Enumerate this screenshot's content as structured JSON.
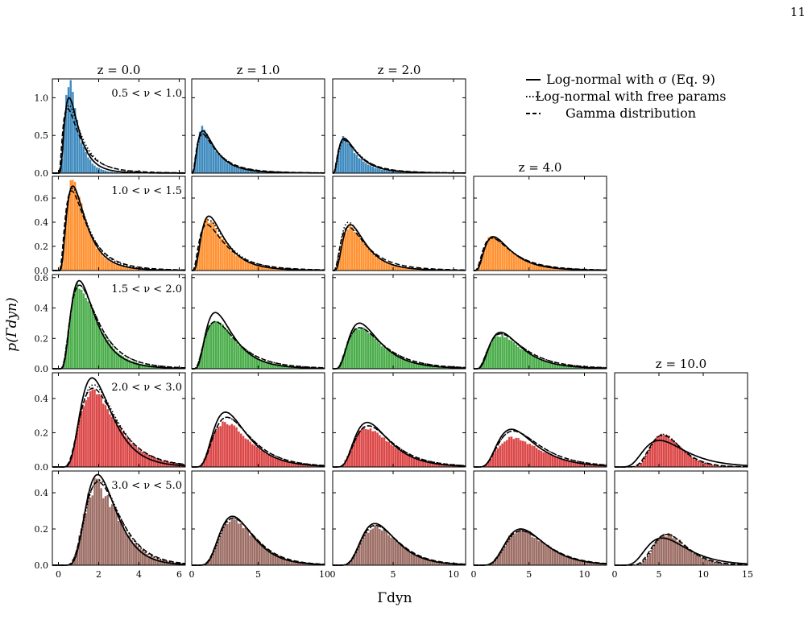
{
  "page_number": "11",
  "figure": {
    "ylabel": "p(Γdyn)",
    "xlabel": "Γdyn",
    "legend": {
      "placement": "top-right",
      "entries": [
        {
          "style": "solid",
          "label": "Log-normal with σ (Eq. 9)"
        },
        {
          "style": "dotted",
          "label": "Log-normal with free params"
        },
        {
          "style": "dashed",
          "label": "Gamma distribution"
        }
      ]
    },
    "colors": {
      "row0": "#1f77b4",
      "row1": "#ff7f0e",
      "row2": "#2ca02c",
      "row3": "#d62728",
      "row4": "#8c564b"
    }
  },
  "chart_data": {
    "type": "histogram-grid",
    "columns": [
      {
        "title": "z = 0.0",
        "xlim": [
          -0.3,
          6.3
        ],
        "xticks": [
          "0",
          "2",
          "4",
          "6"
        ]
      },
      {
        "title": "z = 1.0",
        "xlim": [
          0,
          10
        ],
        "xticks": [
          "0",
          "5",
          "10"
        ]
      },
      {
        "title": "z = 2.0",
        "xlim": [
          0,
          11
        ],
        "xticks": [
          "0",
          "5",
          "10"
        ]
      },
      {
        "title": "z = 4.0",
        "xlim": [
          0,
          12
        ],
        "xticks": [
          "0",
          "5",
          "10"
        ]
      },
      {
        "title": "z = 10.0",
        "xlim": [
          0,
          15
        ],
        "xticks": [
          "0",
          "5",
          "10",
          "15"
        ]
      }
    ],
    "rows": [
      {
        "label": "0.5 < ν < 1.0",
        "color": "#1f77b4",
        "ylim": [
          0,
          1.25
        ],
        "yticks": [
          "0.0",
          "0.5",
          "1.0"
        ],
        "ytick_values": [
          0,
          0.5,
          1.0
        ],
        "panels": [
          {
            "col": 0,
            "solid": {
              "median": 0.78,
              "sigma": 0.62,
              "peak": 1.0
            },
            "dotted": {
              "median": 0.88,
              "sigma": 0.72,
              "peak": 0.9
            },
            "dashed": {
              "median": 0.85,
              "sigma": 0.8,
              "peak": 0.86
            },
            "hist": {
              "median": 0.72,
              "sigma": 0.55,
              "peak": 1.2,
              "jitter": 0.1
            }
          },
          {
            "col": 1,
            "solid": {
              "median": 1.4,
              "sigma": 0.72,
              "peak": 0.56
            },
            "dotted": {
              "median": 1.5,
              "sigma": 0.75,
              "peak": 0.52
            },
            "dashed": {
              "median": 1.5,
              "sigma": 0.8,
              "peak": 0.52
            },
            "hist": {
              "median": 1.35,
              "sigma": 0.7,
              "peak": 0.6,
              "jitter": 0.08
            }
          },
          {
            "col": 2,
            "solid": {
              "median": 1.6,
              "sigma": 0.72,
              "peak": 0.46
            },
            "dotted": {
              "median": 1.7,
              "sigma": 0.72,
              "peak": 0.44
            },
            "dashed": {
              "median": 1.7,
              "sigma": 0.78,
              "peak": 0.44
            },
            "hist": {
              "median": 1.5,
              "sigma": 0.7,
              "peak": 0.46,
              "jitter": 0.08
            }
          }
        ]
      },
      {
        "label": "1.0 < ν < 1.5",
        "color": "#ff7f0e",
        "ylim": [
          0,
          0.78
        ],
        "yticks": [
          "0.0",
          "0.2",
          "0.4",
          "0.6"
        ],
        "ytick_values": [
          0,
          0.2,
          0.4,
          0.6
        ],
        "panels": [
          {
            "col": 0,
            "solid": {
              "median": 1.05,
              "sigma": 0.62,
              "peak": 0.7
            },
            "dotted": {
              "median": 1.1,
              "sigma": 0.65,
              "peak": 0.68
            },
            "dashed": {
              "median": 1.1,
              "sigma": 0.72,
              "peak": 0.66
            },
            "hist": {
              "median": 1.02,
              "sigma": 0.6,
              "peak": 0.74,
              "jitter": 0.05
            }
          },
          {
            "col": 1,
            "solid": {
              "median": 1.9,
              "sigma": 0.62,
              "peak": 0.45
            },
            "dotted": {
              "median": 2.0,
              "sigma": 0.68,
              "peak": 0.42
            },
            "dashed": {
              "median": 2.0,
              "sigma": 0.75,
              "peak": 0.38
            },
            "hist": {
              "median": 1.9,
              "sigma": 0.66,
              "peak": 0.42,
              "jitter": 0.06
            }
          },
          {
            "col": 2,
            "solid": {
              "median": 2.1,
              "sigma": 0.6,
              "peak": 0.38
            },
            "dotted": {
              "median": 2.0,
              "sigma": 0.65,
              "peak": 0.4
            },
            "dashed": {
              "median": 2.2,
              "sigma": 0.72,
              "peak": 0.36
            },
            "hist": {
              "median": 2.1,
              "sigma": 0.64,
              "peak": 0.36,
              "jitter": 0.06
            }
          },
          {
            "col": 3,
            "solid": {
              "median": 2.6,
              "sigma": 0.62,
              "peak": 0.28
            },
            "dotted": {
              "median": 2.7,
              "sigma": 0.66,
              "peak": 0.27
            },
            "dashed": {
              "median": 2.7,
              "sigma": 0.7,
              "peak": 0.27
            },
            "hist": {
              "median": 2.6,
              "sigma": 0.64,
              "peak": 0.28,
              "jitter": 0.06
            }
          }
        ]
      },
      {
        "label": "1.5 < ν < 2.0",
        "color": "#2ca02c",
        "ylim": [
          0,
          0.62
        ],
        "yticks": [
          "0.0",
          "0.2",
          "0.4",
          "0.6"
        ],
        "ytick_values": [
          0,
          0.2,
          0.4,
          0.6
        ],
        "panels": [
          {
            "col": 0,
            "solid": {
              "median": 1.4,
              "sigma": 0.55,
              "peak": 0.58
            },
            "dotted": {
              "median": 1.5,
              "sigma": 0.6,
              "peak": 0.55
            },
            "dashed": {
              "median": 1.5,
              "sigma": 0.6,
              "peak": 0.55
            },
            "hist": {
              "median": 1.45,
              "sigma": 0.58,
              "peak": 0.55,
              "jitter": 0.05
            }
          },
          {
            "col": 1,
            "solid": {
              "median": 2.4,
              "sigma": 0.55,
              "peak": 0.37
            },
            "dotted": {
              "median": 2.6,
              "sigma": 0.62,
              "peak": 0.31
            },
            "dashed": {
              "median": 2.6,
              "sigma": 0.62,
              "peak": 0.31
            },
            "hist": {
              "median": 2.5,
              "sigma": 0.6,
              "peak": 0.32,
              "jitter": 0.05
            }
          },
          {
            "col": 2,
            "solid": {
              "median": 3.0,
              "sigma": 0.55,
              "peak": 0.3
            },
            "dotted": {
              "median": 3.2,
              "sigma": 0.6,
              "peak": 0.27
            },
            "dashed": {
              "median": 3.2,
              "sigma": 0.6,
              "peak": 0.27
            },
            "hist": {
              "median": 3.1,
              "sigma": 0.6,
              "peak": 0.27,
              "jitter": 0.05
            }
          },
          {
            "col": 3,
            "solid": {
              "median": 3.3,
              "sigma": 0.55,
              "peak": 0.24
            },
            "dotted": {
              "median": 3.5,
              "sigma": 0.6,
              "peak": 0.23
            },
            "dashed": {
              "median": 3.5,
              "sigma": 0.6,
              "peak": 0.23
            },
            "hist": {
              "median": 3.4,
              "sigma": 0.6,
              "peak": 0.22,
              "jitter": 0.05
            }
          }
        ]
      },
      {
        "label": "2.0 < ν < 3.0",
        "color": "#d62728",
        "ylim": [
          0,
          0.55
        ],
        "yticks": [
          "0.0",
          "0.2",
          "0.4"
        ],
        "ytick_values": [
          0,
          0.2,
          0.4
        ],
        "panels": [
          {
            "col": 0,
            "solid": {
              "median": 2.05,
              "sigma": 0.45,
              "peak": 0.52
            },
            "dotted": {
              "median": 2.2,
              "sigma": 0.48,
              "peak": 0.48
            },
            "dashed": {
              "median": 2.2,
              "sigma": 0.5,
              "peak": 0.46
            },
            "hist": {
              "median": 2.2,
              "sigma": 0.5,
              "peak": 0.44,
              "jitter": 0.04
            }
          },
          {
            "col": 1,
            "solid": {
              "median": 3.2,
              "sigma": 0.48,
              "peak": 0.32
            },
            "dotted": {
              "median": 3.4,
              "sigma": 0.5,
              "peak": 0.29
            },
            "dashed": {
              "median": 3.4,
              "sigma": 0.5,
              "peak": 0.29
            },
            "hist": {
              "median": 3.3,
              "sigma": 0.52,
              "peak": 0.26,
              "jitter": 0.05
            }
          },
          {
            "col": 2,
            "solid": {
              "median": 3.6,
              "sigma": 0.48,
              "peak": 0.26
            },
            "dotted": {
              "median": 3.8,
              "sigma": 0.5,
              "peak": 0.24
            },
            "dashed": {
              "median": 3.8,
              "sigma": 0.5,
              "peak": 0.24
            },
            "hist": {
              "median": 3.7,
              "sigma": 0.52,
              "peak": 0.23,
              "jitter": 0.05
            }
          },
          {
            "col": 3,
            "solid": {
              "median": 4.3,
              "sigma": 0.48,
              "peak": 0.22
            },
            "dotted": {
              "median": 4.6,
              "sigma": 0.5,
              "peak": 0.21
            },
            "dashed": {
              "median": 4.6,
              "sigma": 0.5,
              "peak": 0.21
            },
            "hist": {
              "median": 4.6,
              "sigma": 0.52,
              "peak": 0.17,
              "jitter": 0.05
            }
          },
          {
            "col": 4,
            "solid": {
              "median": 6.2,
              "sigma": 0.45,
              "peak": 0.155
            },
            "dotted": {
              "median": 6.0,
              "sigma": 0.3,
              "peak": 0.19
            },
            "dashed": {
              "median": 6.0,
              "sigma": 0.32,
              "peak": 0.185
            },
            "hist": {
              "median": 6.0,
              "sigma": 0.3,
              "peak": 0.19,
              "jitter": 0.05
            }
          }
        ]
      },
      {
        "label": "3.0 < ν < 5.0",
        "color": "#8c564b",
        "ylim": [
          0,
          0.52
        ],
        "yticks": [
          "0.0",
          "0.2",
          "0.4"
        ],
        "ytick_values": [
          0,
          0.2,
          0.4
        ],
        "panels": [
          {
            "col": 0,
            "solid": {
              "median": 2.25,
              "sigma": 0.38,
              "peak": 0.5
            },
            "dotted": {
              "median": 2.35,
              "sigma": 0.4,
              "peak": 0.47
            },
            "dashed": {
              "median": 2.35,
              "sigma": 0.42,
              "peak": 0.46
            },
            "hist": {
              "median": 2.3,
              "sigma": 0.42,
              "peak": 0.44,
              "jitter": 0.12
            }
          },
          {
            "col": 1,
            "solid": {
              "median": 3.6,
              "sigma": 0.4,
              "peak": 0.27
            },
            "dotted": {
              "median": 3.7,
              "sigma": 0.4,
              "peak": 0.26
            },
            "dashed": {
              "median": 3.7,
              "sigma": 0.42,
              "peak": 0.26
            },
            "hist": {
              "median": 3.7,
              "sigma": 0.42,
              "peak": 0.25,
              "jitter": 0.07
            }
          },
          {
            "col": 2,
            "solid": {
              "median": 4.1,
              "sigma": 0.4,
              "peak": 0.23
            },
            "dotted": {
              "median": 4.2,
              "sigma": 0.4,
              "peak": 0.22
            },
            "dashed": {
              "median": 4.2,
              "sigma": 0.42,
              "peak": 0.22
            },
            "hist": {
              "median": 4.2,
              "sigma": 0.42,
              "peak": 0.21,
              "jitter": 0.07
            }
          },
          {
            "col": 3,
            "solid": {
              "median": 5.0,
              "sigma": 0.4,
              "peak": 0.2
            },
            "dotted": {
              "median": 5.1,
              "sigma": 0.4,
              "peak": 0.19
            },
            "dashed": {
              "median": 5.1,
              "sigma": 0.42,
              "peak": 0.19
            },
            "hist": {
              "median": 5.1,
              "sigma": 0.42,
              "peak": 0.19,
              "jitter": 0.08
            }
          },
          {
            "col": 4,
            "solid": {
              "median": 6.4,
              "sigma": 0.42,
              "peak": 0.15
            },
            "dotted": {
              "median": 6.5,
              "sigma": 0.3,
              "peak": 0.17
            },
            "dashed": {
              "median": 6.5,
              "sigma": 0.32,
              "peak": 0.17
            },
            "hist": {
              "median": 6.5,
              "sigma": 0.3,
              "peak": 0.17,
              "jitter": 0.09
            }
          }
        ]
      }
    ]
  }
}
